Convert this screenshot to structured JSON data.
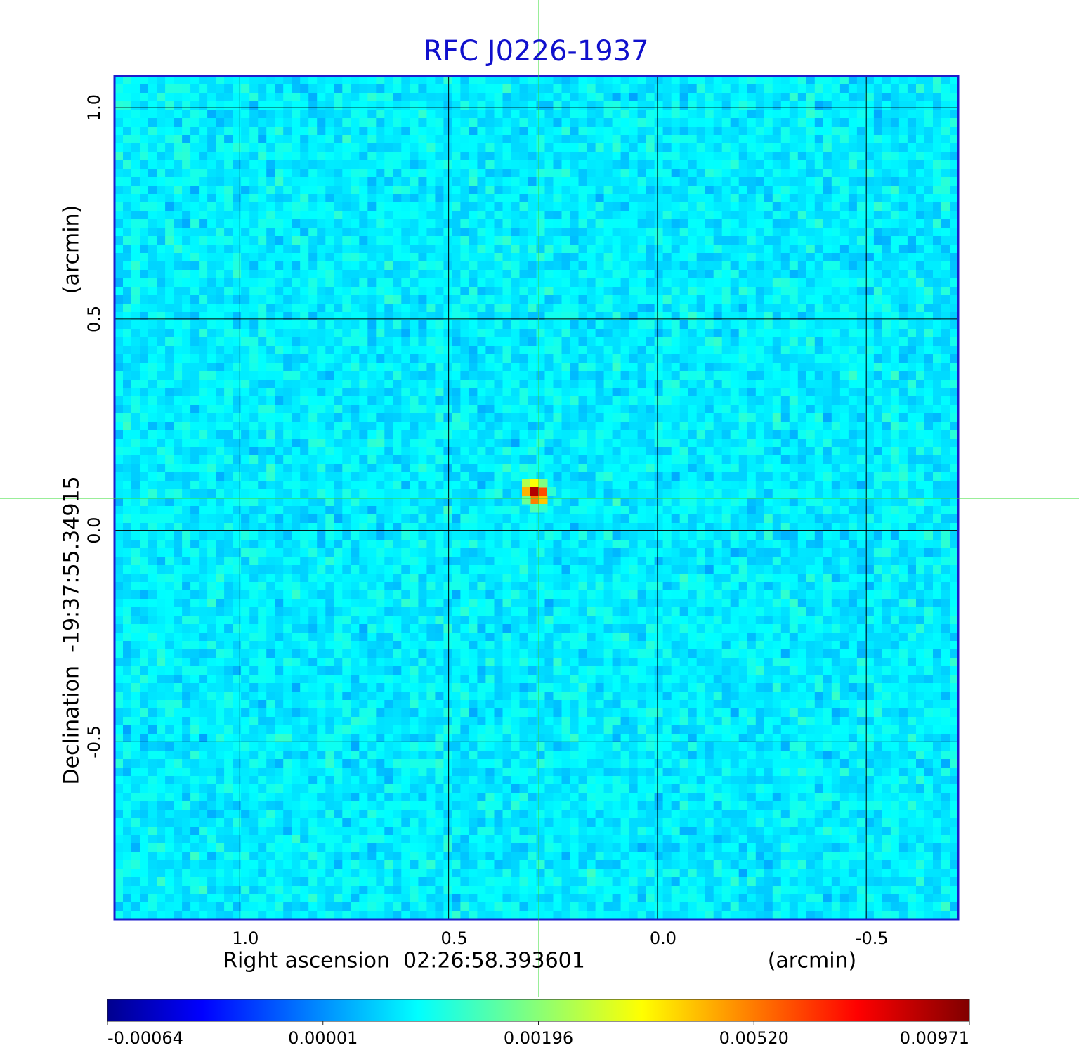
{
  "chart_data": {
    "type": "image",
    "title": "RFC J0226-1937",
    "x_label": "Right ascension  02:26:58.393601",
    "x_unit": "(arcmin)",
    "y_label": "Declination  -19:37:55.34915",
    "y_unit": "(arcmin)",
    "xlim": [
      1.3,
      -0.72
    ],
    "ylim": [
      -0.92,
      1.075
    ],
    "xticks": [
      {
        "value": 1,
        "label": "1.0"
      },
      0.5,
      {
        "value": 0,
        "label": "0.0"
      },
      -0.5
    ],
    "yticks": [
      {
        "value": 1,
        "label": "1.0"
      },
      0.5,
      {
        "value": 0,
        "label": "0.0"
      },
      -0.5
    ],
    "grid": true,
    "colormap": "jet",
    "colorbar_ticks": [
      {
        "value": -0.00064,
        "label": "-0.00064"
      },
      {
        "value": 1e-05,
        "label": "0.00001"
      },
      {
        "value": 0.00196,
        "label": "0.00196"
      },
      {
        "value": 0.0052,
        "label": "0.00520"
      },
      {
        "value": 0.00971,
        "label": "0.00971"
      }
    ]
  }
}
